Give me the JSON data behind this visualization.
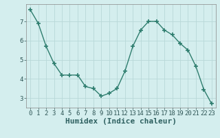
{
  "x": [
    0,
    1,
    2,
    3,
    4,
    5,
    6,
    7,
    8,
    9,
    10,
    11,
    12,
    13,
    14,
    15,
    16,
    17,
    18,
    19,
    20,
    21,
    22,
    23
  ],
  "y": [
    7.6,
    6.9,
    5.7,
    4.8,
    4.2,
    4.2,
    4.2,
    3.6,
    3.5,
    3.1,
    3.25,
    3.5,
    4.4,
    5.7,
    6.55,
    7.0,
    7.0,
    6.55,
    6.3,
    5.85,
    5.5,
    4.65,
    3.45,
    2.7
  ],
  "line_color": "#2e7d6e",
  "marker": "+",
  "marker_size": 4,
  "bg_color": "#d4eeee",
  "grid_color": "#b8d8d8",
  "xlabel": "Humidex (Indice chaleur)",
  "xlabel_fontsize": 8,
  "tick_fontsize": 6.5,
  "ylim": [
    2.5,
    7.9
  ],
  "xlim": [
    -0.5,
    23.5
  ],
  "yticks": [
    3,
    4,
    5,
    6,
    7
  ],
  "xticks": [
    0,
    1,
    2,
    3,
    4,
    5,
    6,
    7,
    8,
    9,
    10,
    11,
    12,
    13,
    14,
    15,
    16,
    17,
    18,
    19,
    20,
    21,
    22,
    23
  ]
}
